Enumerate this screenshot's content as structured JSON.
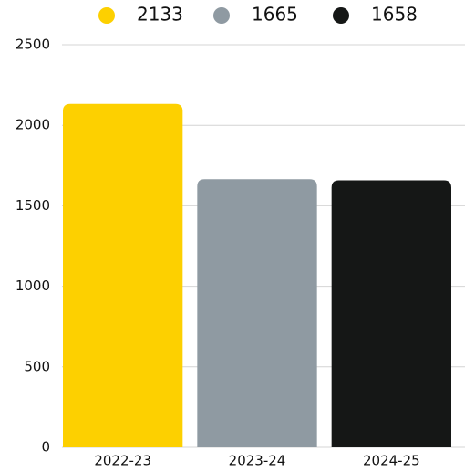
{
  "chart_data": {
    "type": "bar",
    "categories": [
      "2022-23",
      "2023-24",
      "2024-25"
    ],
    "values": [
      2133,
      1665,
      1658
    ],
    "colors": [
      "#fdd000",
      "#8f9aa2",
      "#151716"
    ],
    "ylim": [
      0,
      2500
    ],
    "yticks": [
      0,
      500,
      1000,
      1500,
      2000,
      2500
    ],
    "grid": true,
    "legend": "top"
  }
}
